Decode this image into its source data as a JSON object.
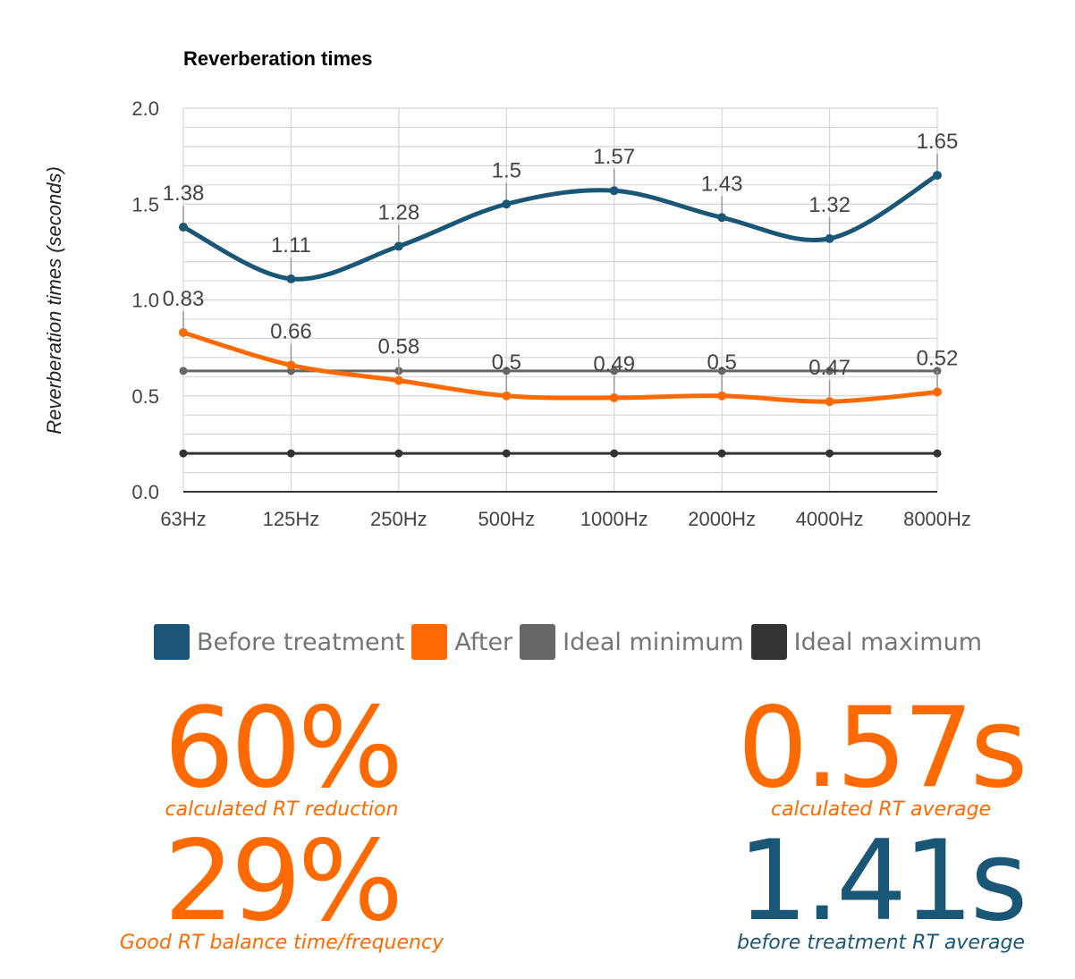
{
  "chart_data": {
    "type": "line",
    "title": "Reverberation times",
    "xlabel": "",
    "ylabel": "Reverberation times (seconds)",
    "categories": [
      "63Hz",
      "125Hz",
      "250Hz",
      "500Hz",
      "1000Hz",
      "2000Hz",
      "4000Hz",
      "8000Hz"
    ],
    "ylim": [
      0,
      2
    ],
    "yticks": [
      "0.0",
      "0.5",
      "1.0",
      "1.5",
      "2.0"
    ],
    "grid": true,
    "legend_position": "bottom",
    "series": [
      {
        "name": "Before treatment",
        "color": "#1a5676",
        "smooth": true,
        "values": [
          1.38,
          1.11,
          1.28,
          1.5,
          1.57,
          1.43,
          1.32,
          1.65
        ],
        "labels": [
          "1.38",
          "1.11",
          "1.28",
          "1.5",
          "1.57",
          "1.43",
          "1.32",
          "1.65"
        ]
      },
      {
        "name": "After",
        "color": "#ff6a00",
        "smooth": true,
        "values": [
          0.83,
          0.66,
          0.58,
          0.5,
          0.49,
          0.5,
          0.47,
          0.52
        ],
        "labels": [
          "0.83",
          "0.66",
          "0.58",
          "0.5",
          "0.49",
          "0.5",
          "0.47",
          "0.52"
        ]
      },
      {
        "name": "Ideal minimum",
        "color": "#666666",
        "smooth": false,
        "values": [
          0.63,
          0.63,
          0.63,
          0.63,
          0.63,
          0.63,
          0.63,
          0.63
        ]
      },
      {
        "name": "Ideal maximum",
        "color": "#333333",
        "smooth": false,
        "values": [
          0.2,
          0.2,
          0.2,
          0.2,
          0.2,
          0.2,
          0.2,
          0.2
        ]
      }
    ]
  },
  "stats": [
    {
      "value": "60%",
      "caption": "calculated RT reduction",
      "color": "#ff6a00"
    },
    {
      "value": "0.57s",
      "caption": "calculated RT average",
      "color": "#ff6a00"
    },
    {
      "value": "29%",
      "caption": "Good RT balance time/frequency",
      "color": "#ff6a00"
    },
    {
      "value": "1.41s",
      "caption": "before treatment RT average",
      "color": "#1a5676"
    }
  ]
}
